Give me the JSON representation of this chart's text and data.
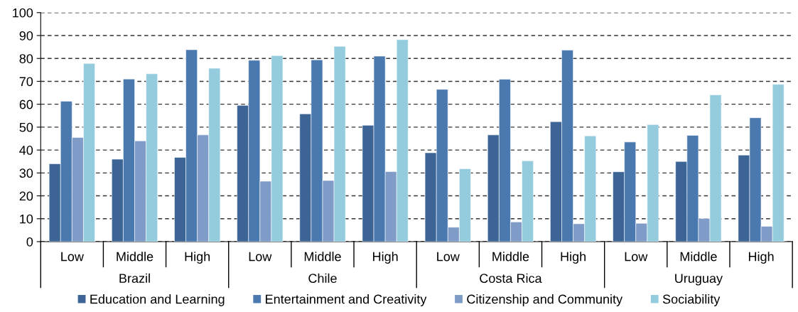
{
  "chart_data": {
    "type": "bar",
    "categories": [
      "Low",
      "Middle",
      "High",
      "Low",
      "Middle",
      "High",
      "Low",
      "Middle",
      "High",
      "Low",
      "Middle",
      "High"
    ],
    "annotations": [
      "Brazil",
      "Chile",
      "Costa Rica",
      "Uruguay"
    ],
    "series": [
      {
        "name": "Education and Learning",
        "color": "#3c6494",
        "values": [
          34,
          36,
          36.8,
          59.5,
          55.8,
          50.8,
          38.8,
          46.6,
          52.4,
          30.5,
          35,
          37.8
        ]
      },
      {
        "name": "Entertainment and Creativity",
        "color": "#4a79b0",
        "values": [
          61.3,
          71,
          83.8,
          79.2,
          79.4,
          81,
          66.5,
          70.9,
          83.6,
          43.5,
          46.4,
          54.1
        ]
      },
      {
        "name": "Citizenship and Community",
        "color": "#7f9cc8",
        "values": [
          45.5,
          44,
          46.6,
          26.4,
          26.7,
          30.6,
          6.3,
          8.6,
          7.8,
          8,
          10.1,
          6.7
        ]
      },
      {
        "name": "Sociability",
        "color": "#94ccdd",
        "values": [
          77.8,
          73.3,
          75.7,
          81.2,
          85.3,
          88.2,
          31.8,
          35.3,
          46.2,
          51.1,
          64.1,
          68.7
        ]
      }
    ],
    "ylim": [
      0,
      100
    ],
    "yticks": [
      0,
      10,
      20,
      30,
      40,
      50,
      60,
      70,
      80,
      90,
      100
    ],
    "grid": "y",
    "legend": "bottom"
  }
}
